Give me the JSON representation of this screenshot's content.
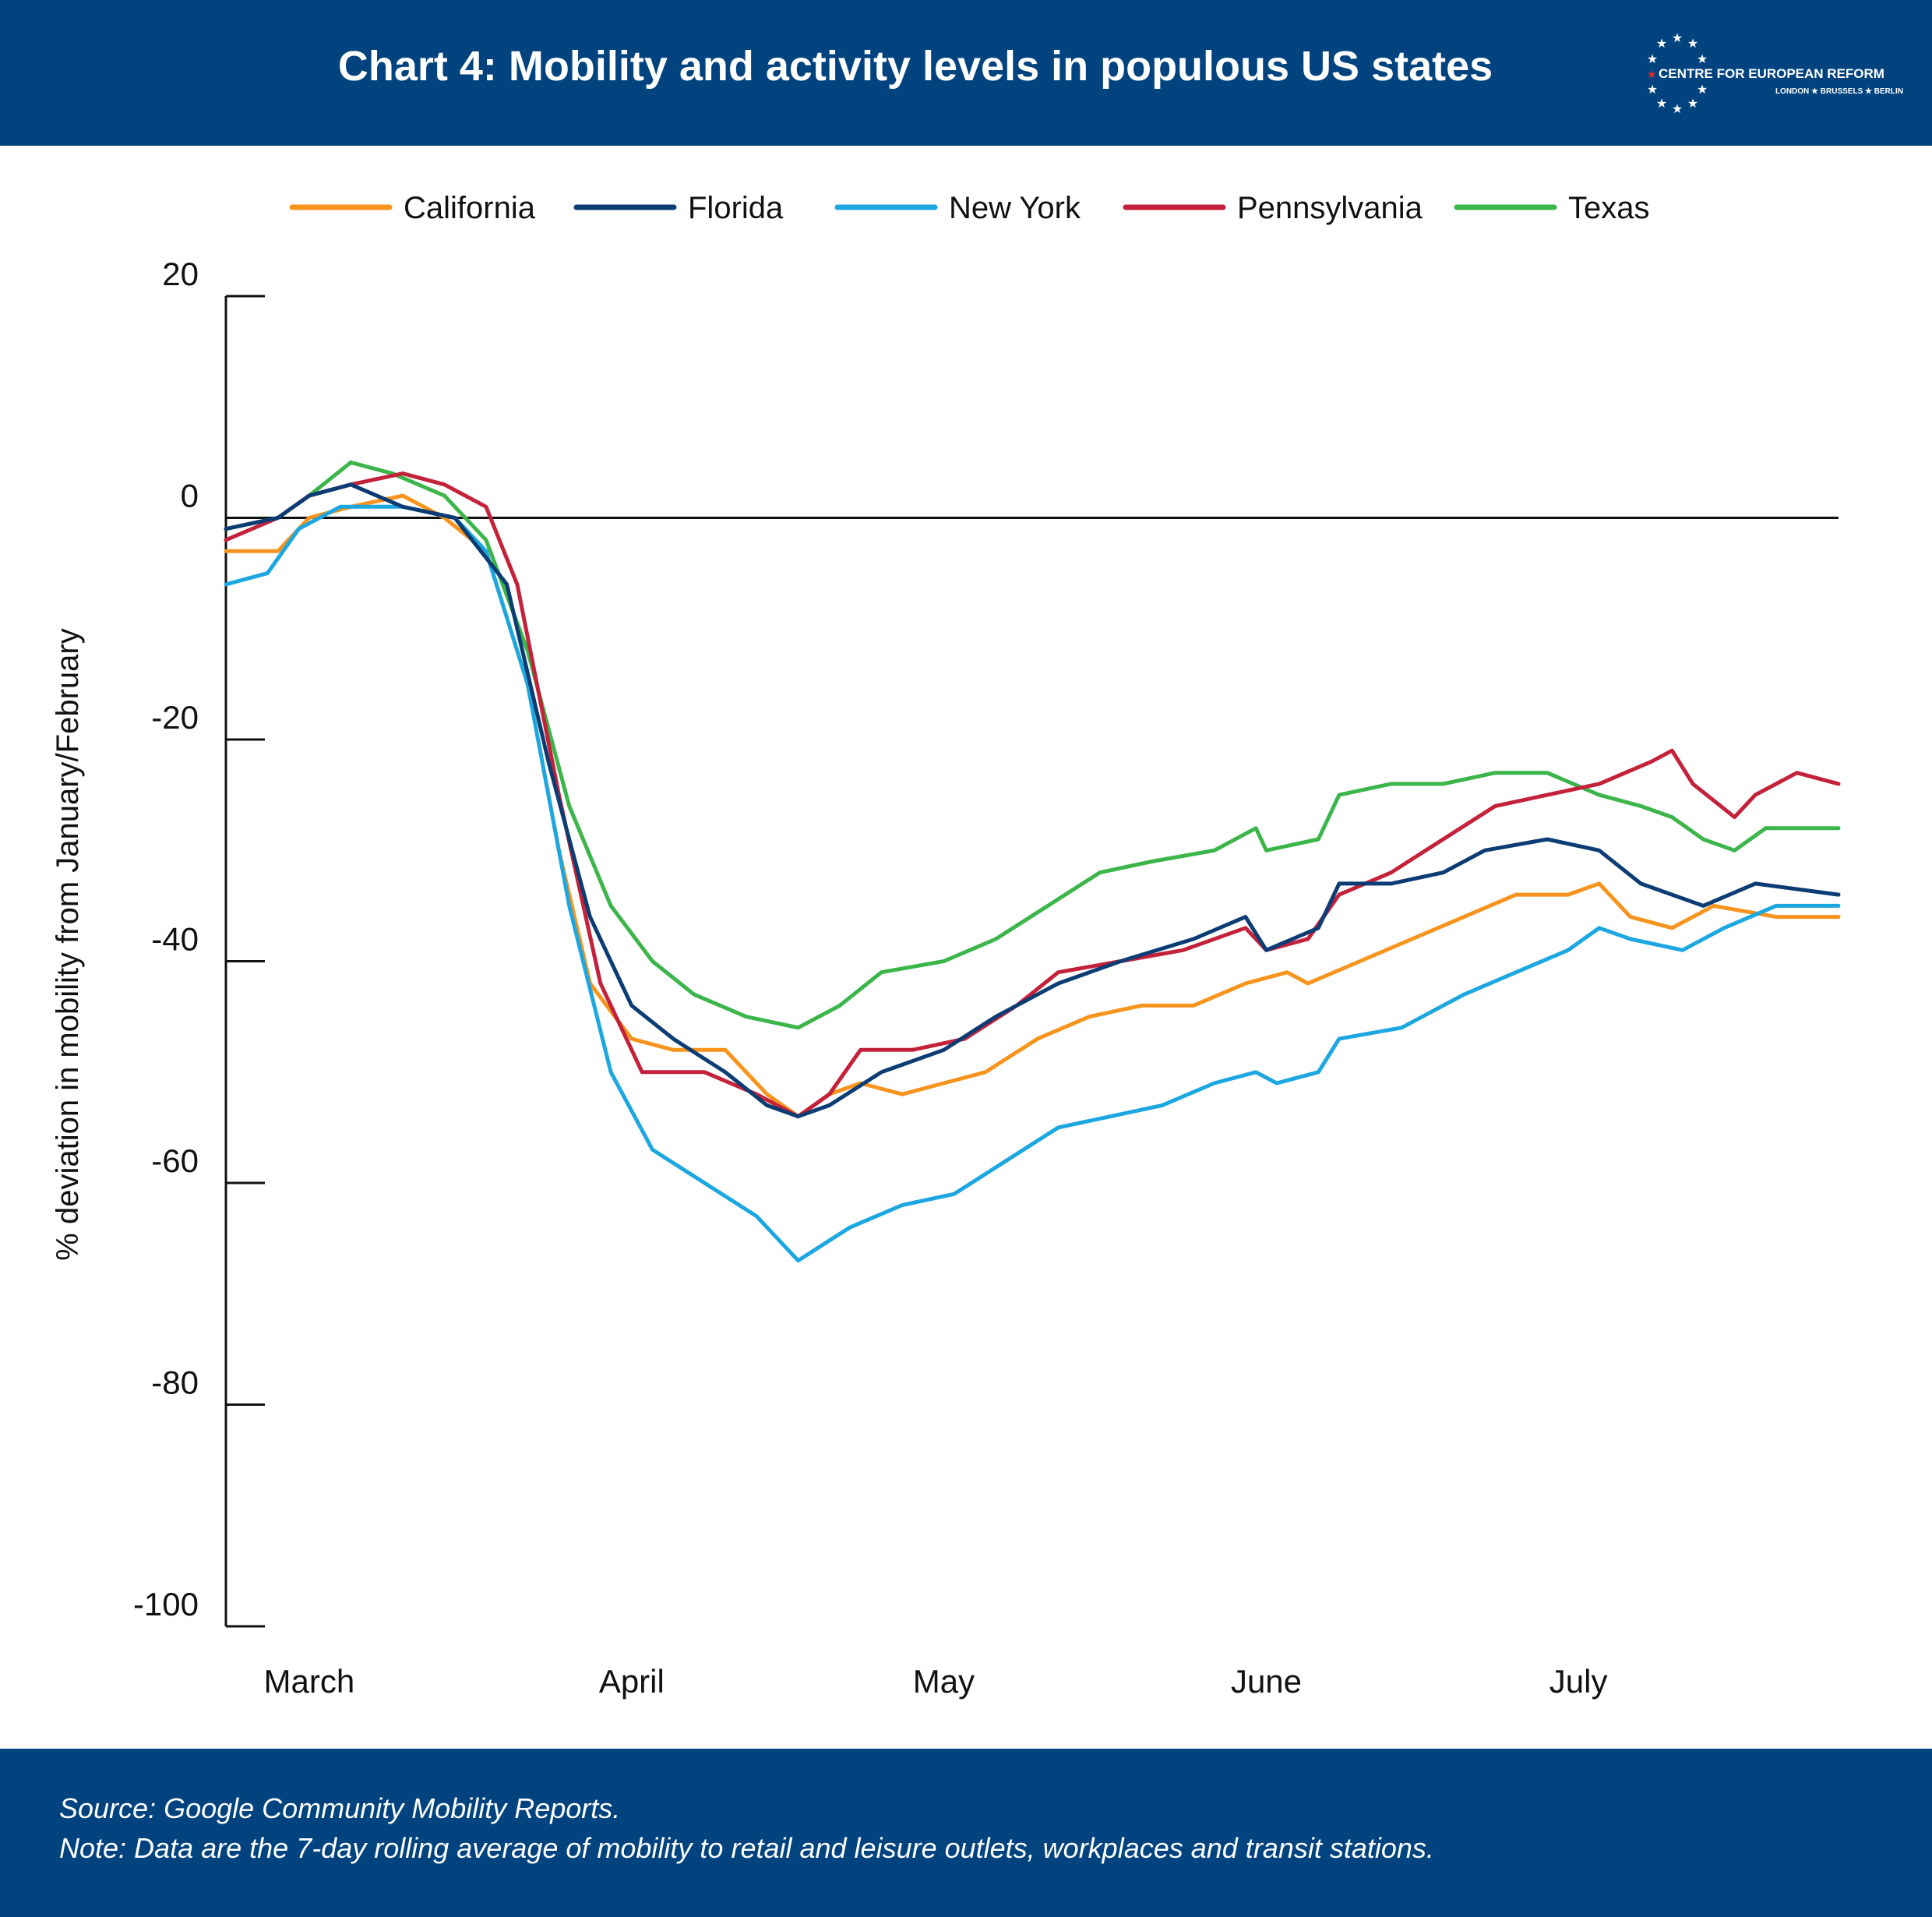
{
  "header": {
    "title": "Chart 4: Mobility and activity levels in populous US states",
    "logo": {
      "name": "CENTRE FOR EUROPEAN REFORM",
      "cities": "LONDON ★ BRUSSELS ★ BERLIN"
    }
  },
  "footer": {
    "source": "Source: Google Community Mobility Reports.",
    "note": "Note: Data are the 7-day rolling average of mobility to retail and leisure outlets, workplaces and transit stations."
  },
  "colors": {
    "header_bg": "#00437e",
    "California": "#f7941d",
    "Florida": "#0b3c74",
    "New York": "#1ca7e1",
    "Pennsylvania": "#c4213a",
    "Texas": "#3cb54a"
  },
  "chart_data": {
    "type": "line",
    "title": "Chart 4: Mobility and activity levels in populous US states",
    "ylabel": "% deviation in mobility from January/February",
    "xlabel": "",
    "ylim": [
      -100,
      20
    ],
    "yticks": [
      20,
      0,
      -20,
      -40,
      -60,
      -80,
      -100
    ],
    "x_range": [
      "2020-02-22",
      "2020-07-26"
    ],
    "x_tick_labels": [
      "March",
      "April",
      "May",
      "June",
      "July"
    ],
    "x_ticks": [
      "2020-03-01",
      "2020-04-01",
      "2020-05-01",
      "2020-06-01",
      "2020-07-01"
    ],
    "zero_line": true,
    "grid": false,
    "legend_position": "top",
    "series": [
      {
        "name": "California",
        "points": [
          [
            "2020-02-22",
            -3
          ],
          [
            "2020-02-27",
            -3
          ],
          [
            "2020-03-01",
            0
          ],
          [
            "2020-03-05",
            1
          ],
          [
            "2020-03-10",
            2
          ],
          [
            "2020-03-14",
            0
          ],
          [
            "2020-03-18",
            -3
          ],
          [
            "2020-03-22",
            -15
          ],
          [
            "2020-03-25",
            -30
          ],
          [
            "2020-03-28",
            -42
          ],
          [
            "2020-04-01",
            -47
          ],
          [
            "2020-04-05",
            -48
          ],
          [
            "2020-04-10",
            -48
          ],
          [
            "2020-04-14",
            -52
          ],
          [
            "2020-04-17",
            -54
          ],
          [
            "2020-04-20",
            -52
          ],
          [
            "2020-04-23",
            -51
          ],
          [
            "2020-04-27",
            -52
          ],
          [
            "2020-05-01",
            -51
          ],
          [
            "2020-05-05",
            -50
          ],
          [
            "2020-05-10",
            -47
          ],
          [
            "2020-05-15",
            -45
          ],
          [
            "2020-05-20",
            -44
          ],
          [
            "2020-05-25",
            -44
          ],
          [
            "2020-05-30",
            -42
          ],
          [
            "2020-06-03",
            -41
          ],
          [
            "2020-06-05",
            -42
          ],
          [
            "2020-06-10",
            -40
          ],
          [
            "2020-06-15",
            -38
          ],
          [
            "2020-06-20",
            -36
          ],
          [
            "2020-06-25",
            -34
          ],
          [
            "2020-06-30",
            -34
          ],
          [
            "2020-07-03",
            -33
          ],
          [
            "2020-07-06",
            -36
          ],
          [
            "2020-07-10",
            -37
          ],
          [
            "2020-07-14",
            -35
          ],
          [
            "2020-07-20",
            -36
          ],
          [
            "2020-07-26",
            -36
          ]
        ]
      },
      {
        "name": "Florida",
        "points": [
          [
            "2020-02-22",
            -1
          ],
          [
            "2020-02-27",
            0
          ],
          [
            "2020-03-01",
            2
          ],
          [
            "2020-03-05",
            3
          ],
          [
            "2020-03-10",
            1
          ],
          [
            "2020-03-15",
            0
          ],
          [
            "2020-03-20",
            -6
          ],
          [
            "2020-03-24",
            -22
          ],
          [
            "2020-03-28",
            -36
          ],
          [
            "2020-04-01",
            -44
          ],
          [
            "2020-04-05",
            -47
          ],
          [
            "2020-04-10",
            -50
          ],
          [
            "2020-04-14",
            -53
          ],
          [
            "2020-04-17",
            -54
          ],
          [
            "2020-04-20",
            -53
          ],
          [
            "2020-04-25",
            -50
          ],
          [
            "2020-05-01",
            -48
          ],
          [
            "2020-05-06",
            -45
          ],
          [
            "2020-05-12",
            -42
          ],
          [
            "2020-05-18",
            -40
          ],
          [
            "2020-05-25",
            -38
          ],
          [
            "2020-05-30",
            -36
          ],
          [
            "2020-06-01",
            -39
          ],
          [
            "2020-06-06",
            -37
          ],
          [
            "2020-06-08",
            -33
          ],
          [
            "2020-06-13",
            -33
          ],
          [
            "2020-06-18",
            -32
          ],
          [
            "2020-06-22",
            -30
          ],
          [
            "2020-06-28",
            -29
          ],
          [
            "2020-07-03",
            -30
          ],
          [
            "2020-07-07",
            -33
          ],
          [
            "2020-07-13",
            -35
          ],
          [
            "2020-07-18",
            -33
          ],
          [
            "2020-07-26",
            -34
          ]
        ]
      },
      {
        "name": "New York",
        "points": [
          [
            "2020-02-22",
            -6
          ],
          [
            "2020-02-26",
            -5
          ],
          [
            "2020-02-29",
            -1
          ],
          [
            "2020-03-04",
            1
          ],
          [
            "2020-03-10",
            1
          ],
          [
            "2020-03-15",
            0
          ],
          [
            "2020-03-18",
            -3
          ],
          [
            "2020-03-22",
            -15
          ],
          [
            "2020-03-26",
            -35
          ],
          [
            "2020-03-30",
            -50
          ],
          [
            "2020-04-03",
            -57
          ],
          [
            "2020-04-08",
            -60
          ],
          [
            "2020-04-13",
            -63
          ],
          [
            "2020-04-17",
            -67
          ],
          [
            "2020-04-22",
            -64
          ],
          [
            "2020-04-27",
            -62
          ],
          [
            "2020-05-02",
            -61
          ],
          [
            "2020-05-07",
            -58
          ],
          [
            "2020-05-12",
            -55
          ],
          [
            "2020-05-17",
            -54
          ],
          [
            "2020-05-22",
            -53
          ],
          [
            "2020-05-27",
            -51
          ],
          [
            "2020-05-31",
            -50
          ],
          [
            "2020-06-02",
            -51
          ],
          [
            "2020-06-06",
            -50
          ],
          [
            "2020-06-08",
            -47
          ],
          [
            "2020-06-14",
            -46
          ],
          [
            "2020-06-20",
            -43
          ],
          [
            "2020-06-25",
            -41
          ],
          [
            "2020-06-30",
            -39
          ],
          [
            "2020-07-03",
            -37
          ],
          [
            "2020-07-06",
            -38
          ],
          [
            "2020-07-11",
            -39
          ],
          [
            "2020-07-15",
            -37
          ],
          [
            "2020-07-20",
            -35
          ],
          [
            "2020-07-26",
            -35
          ]
        ]
      },
      {
        "name": "Pennsylvania",
        "points": [
          [
            "2020-02-22",
            -2
          ],
          [
            "2020-02-27",
            0
          ],
          [
            "2020-03-01",
            2
          ],
          [
            "2020-03-05",
            3
          ],
          [
            "2020-03-10",
            4
          ],
          [
            "2020-03-14",
            3
          ],
          [
            "2020-03-18",
            1
          ],
          [
            "2020-03-21",
            -6
          ],
          [
            "2020-03-25",
            -25
          ],
          [
            "2020-03-29",
            -42
          ],
          [
            "2020-04-02",
            -50
          ],
          [
            "2020-04-08",
            -50
          ],
          [
            "2020-04-13",
            -52
          ],
          [
            "2020-04-17",
            -54
          ],
          [
            "2020-04-20",
            -52
          ],
          [
            "2020-04-23",
            -48
          ],
          [
            "2020-04-28",
            -48
          ],
          [
            "2020-05-03",
            -47
          ],
          [
            "2020-05-08",
            -44
          ],
          [
            "2020-05-12",
            -41
          ],
          [
            "2020-05-18",
            -40
          ],
          [
            "2020-05-24",
            -39
          ],
          [
            "2020-05-30",
            -37
          ],
          [
            "2020-06-01",
            -39
          ],
          [
            "2020-06-05",
            -38
          ],
          [
            "2020-06-08",
            -34
          ],
          [
            "2020-06-13",
            -32
          ],
          [
            "2020-06-18",
            -29
          ],
          [
            "2020-06-23",
            -26
          ],
          [
            "2020-06-28",
            -25
          ],
          [
            "2020-07-03",
            -24
          ],
          [
            "2020-07-08",
            -22
          ],
          [
            "2020-07-10",
            -21
          ],
          [
            "2020-07-12",
            -24
          ],
          [
            "2020-07-16",
            -27
          ],
          [
            "2020-07-18",
            -25
          ],
          [
            "2020-07-22",
            -23
          ],
          [
            "2020-07-26",
            -24
          ]
        ]
      },
      {
        "name": "Texas",
        "points": [
          [
            "2020-02-22",
            -1
          ],
          [
            "2020-02-27",
            0
          ],
          [
            "2020-03-01",
            2
          ],
          [
            "2020-03-05",
            5
          ],
          [
            "2020-03-09",
            4
          ],
          [
            "2020-03-14",
            2
          ],
          [
            "2020-03-18",
            -2
          ],
          [
            "2020-03-22",
            -12
          ],
          [
            "2020-03-26",
            -26
          ],
          [
            "2020-03-30",
            -35
          ],
          [
            "2020-04-03",
            -40
          ],
          [
            "2020-04-07",
            -43
          ],
          [
            "2020-04-12",
            -45
          ],
          [
            "2020-04-17",
            -46
          ],
          [
            "2020-04-21",
            -44
          ],
          [
            "2020-04-25",
            -41
          ],
          [
            "2020-05-01",
            -40
          ],
          [
            "2020-05-06",
            -38
          ],
          [
            "2020-05-11",
            -35
          ],
          [
            "2020-05-16",
            -32
          ],
          [
            "2020-05-21",
            -31
          ],
          [
            "2020-05-27",
            -30
          ],
          [
            "2020-05-31",
            -28
          ],
          [
            "2020-06-01",
            -30
          ],
          [
            "2020-06-06",
            -29
          ],
          [
            "2020-06-08",
            -25
          ],
          [
            "2020-06-13",
            -24
          ],
          [
            "2020-06-18",
            -24
          ],
          [
            "2020-06-23",
            -23
          ],
          [
            "2020-06-28",
            -23
          ],
          [
            "2020-07-03",
            -25
          ],
          [
            "2020-07-07",
            -26
          ],
          [
            "2020-07-10",
            -27
          ],
          [
            "2020-07-13",
            -29
          ],
          [
            "2020-07-16",
            -30
          ],
          [
            "2020-07-19",
            -28
          ],
          [
            "2020-07-26",
            -28
          ]
        ]
      }
    ]
  }
}
